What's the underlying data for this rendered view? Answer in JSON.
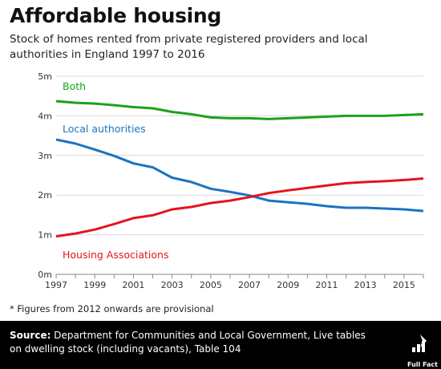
{
  "header": {
    "title": "Affordable housing",
    "subtitle": "Stock of homes rented from private registered providers and local authorities in England 1997 to 2016"
  },
  "footnote": "* Figures from 2012 onwards are provisional",
  "source": {
    "label": "Source:",
    "text": "Department for Communities and Local Government, Live tables on dwelling stock (including vacants), Table 104"
  },
  "logo": {
    "text": "Full Fact"
  },
  "colors": {
    "both": "#1aa31a",
    "local": "#1a73c2",
    "housing": "#e3141d",
    "grid": "#d8d8d8",
    "axis": "#888888"
  },
  "chart_data": {
    "type": "line",
    "title": "",
    "xlabel": "",
    "ylabel": "",
    "x": [
      1997,
      1998,
      1999,
      2000,
      2001,
      2002,
      2003,
      2004,
      2005,
      2006,
      2007,
      2008,
      2009,
      2010,
      2011,
      2012,
      2013,
      2014,
      2015,
      2016
    ],
    "xlim": [
      1997,
      2016
    ],
    "ylim": [
      0,
      5000000
    ],
    "yticks": [
      0,
      1000000,
      2000000,
      3000000,
      4000000,
      5000000
    ],
    "ytick_labels": [
      "0m",
      "1m",
      "2m",
      "3m",
      "4m",
      "5m"
    ],
    "xticks": [
      1997,
      1999,
      2001,
      2003,
      2005,
      2007,
      2009,
      2011,
      2013,
      2015
    ],
    "xtick_labels": [
      "1997",
      "1999",
      "2001",
      "2003",
      "2005",
      "2007",
      "2009",
      "2011",
      "2013",
      "2015"
    ],
    "grid": "horizontal",
    "series": [
      {
        "name": "Both",
        "color": "#1aa31a",
        "values": [
          4370000,
          4330000,
          4310000,
          4270000,
          4220000,
          4190000,
          4100000,
          4040000,
          3960000,
          3940000,
          3940000,
          3920000,
          3940000,
          3960000,
          3980000,
          4000000,
          4000000,
          4000000,
          4020000,
          4040000
        ]
      },
      {
        "name": "Local authorities",
        "color": "#1a73c2",
        "values": [
          3400000,
          3300000,
          3150000,
          2990000,
          2800000,
          2700000,
          2440000,
          2330000,
          2160000,
          2080000,
          1990000,
          1860000,
          1820000,
          1780000,
          1720000,
          1680000,
          1680000,
          1660000,
          1640000,
          1600000
        ]
      },
      {
        "name": "Housing Associations",
        "color": "#e3141d",
        "values": [
          960000,
          1030000,
          1130000,
          1270000,
          1420000,
          1490000,
          1640000,
          1700000,
          1800000,
          1860000,
          1950000,
          2050000,
          2120000,
          2180000,
          2240000,
          2300000,
          2330000,
          2350000,
          2380000,
          2420000
        ]
      }
    ]
  }
}
